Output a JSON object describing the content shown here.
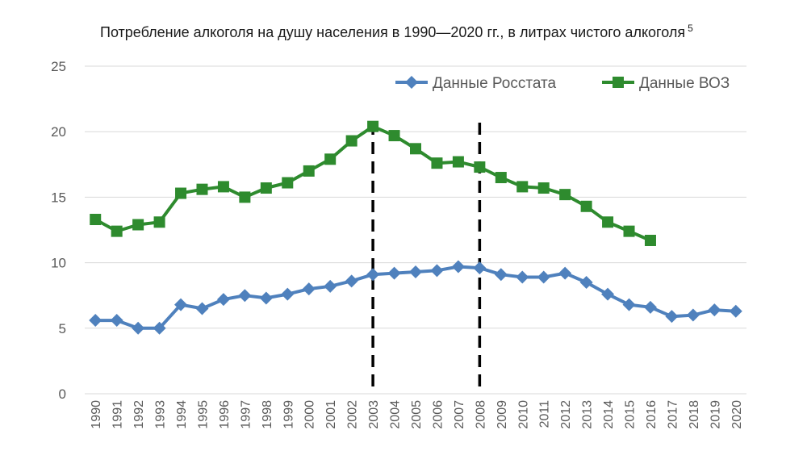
{
  "chart_data": {
    "type": "line",
    "title": "Потребление алкоголя на душу населения в 1990—2020 гг., в литрах чистого алкоголя",
    "title_footnote": "5",
    "xlabel": "",
    "ylabel": "",
    "ylim": [
      0,
      25
    ],
    "yticks": [
      "0",
      "5",
      "10",
      "15",
      "20",
      "25"
    ],
    "grid": "horizontal",
    "legend_position": "top-right",
    "x": [
      "1990",
      "1991",
      "1992",
      "1993",
      "1994",
      "1995",
      "1996",
      "1997",
      "1998",
      "1999",
      "2000",
      "2001",
      "2002",
      "2003",
      "2004",
      "2005",
      "2006",
      "2007",
      "2008",
      "2009",
      "2010",
      "2011",
      "2012",
      "2013",
      "2014",
      "2015",
      "2016",
      "2017",
      "2018",
      "2019",
      "2020"
    ],
    "series": [
      {
        "name": "Данные Росстата",
        "color": "#4f81bd",
        "marker": "diamond",
        "values": [
          5.6,
          5.6,
          5.0,
          5.0,
          6.8,
          6.5,
          7.2,
          7.5,
          7.3,
          7.6,
          8.0,
          8.2,
          8.6,
          9.1,
          9.2,
          9.3,
          9.4,
          9.7,
          9.6,
          9.1,
          8.9,
          8.9,
          9.2,
          8.5,
          7.6,
          6.8,
          6.6,
          5.9,
          6.0,
          6.4,
          6.3
        ]
      },
      {
        "name": "Данные ВОЗ",
        "color": "#2e8b2e",
        "marker": "square",
        "values": [
          13.3,
          12.4,
          12.9,
          13.1,
          15.3,
          15.6,
          15.8,
          15.0,
          15.7,
          16.1,
          17.0,
          17.9,
          19.3,
          20.4,
          19.7,
          18.7,
          17.6,
          17.7,
          17.3,
          16.5,
          15.8,
          15.7,
          15.2,
          14.3,
          13.1,
          12.4,
          11.7,
          null,
          null,
          null,
          null
        ]
      }
    ],
    "reference_lines": [
      {
        "x": "2003",
        "style": "dashed",
        "color": "#000000"
      },
      {
        "x": "2008",
        "style": "dashed",
        "color": "#000000"
      }
    ]
  }
}
